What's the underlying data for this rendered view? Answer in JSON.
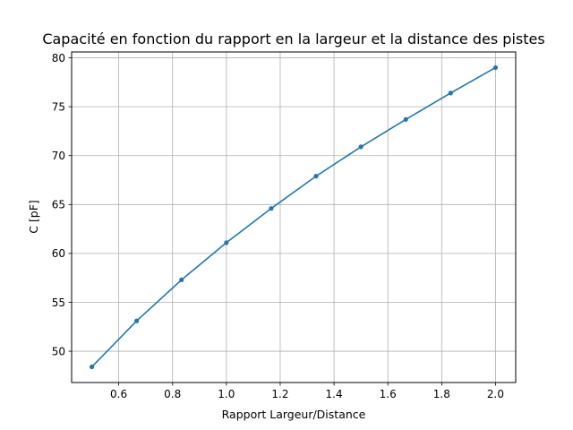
{
  "chart_data": {
    "type": "line",
    "title": "Capacité en fonction du rapport en la largeur et la distance des pistes",
    "xlabel": "Rapport Largeur/Distance",
    "ylabel": "C [pF]",
    "xlim": [
      0.425,
      2.075
    ],
    "ylim": [
      46.8,
      80.6
    ],
    "xticks": [
      0.6,
      0.8,
      1.0,
      1.2,
      1.4,
      1.6,
      1.8,
      2.0
    ],
    "xtick_labels": [
      "0.6",
      "0.8",
      "1.0",
      "1.2",
      "1.4",
      "1.6",
      "1.8",
      "2.0"
    ],
    "yticks": [
      50,
      55,
      60,
      65,
      70,
      75,
      80
    ],
    "ytick_labels": [
      "50",
      "55",
      "60",
      "65",
      "70",
      "75",
      "80"
    ],
    "grid": true,
    "series": [
      {
        "color": "#1f77b4",
        "marker": "circle",
        "x": [
          0.5,
          0.6667,
          0.8333,
          1.0,
          1.1667,
          1.3333,
          1.5,
          1.6667,
          1.8333,
          2.0
        ],
        "y": [
          48.4,
          53.1,
          57.3,
          61.1,
          64.6,
          67.9,
          70.9,
          73.7,
          76.4,
          79.0
        ]
      }
    ]
  }
}
